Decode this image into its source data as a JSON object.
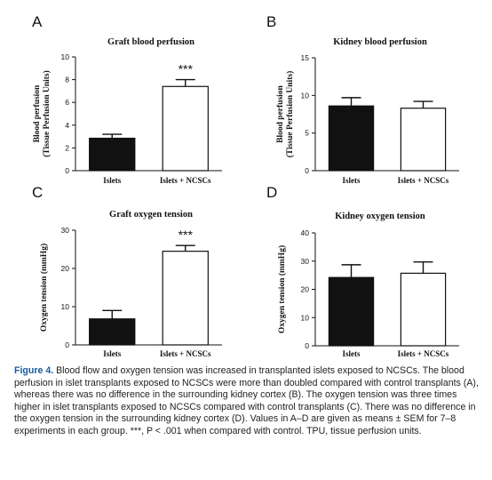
{
  "chart_data": [
    {
      "panel": "A",
      "type": "bar",
      "title": "Graft blood perfusion",
      "ylabel": "Blood perfusion (Tissue Perfusion Units)",
      "ylabel_lines": [
        "Blood perfusion",
        "(Tissue Perfusion Units)"
      ],
      "categories": [
        "Islets",
        "Islets + NCSCs"
      ],
      "values": [
        2.85,
        7.4
      ],
      "errors": [
        0.35,
        0.6
      ],
      "bar_colors": [
        "#111111",
        "#ffffff"
      ],
      "significance": [
        "",
        "***"
      ],
      "ylim": [
        0,
        10
      ],
      "yticks": [
        0,
        2,
        4,
        6,
        8,
        10
      ]
    },
    {
      "panel": "B",
      "type": "bar",
      "title": "Kidney blood perfusion",
      "ylabel": "Blood perfusion (Tissue Perfusion Units)",
      "ylabel_lines": [
        "Blood perfusion",
        "(Tissue Perfusion Units)"
      ],
      "categories": [
        "Islets",
        "Islets + NCSCs"
      ],
      "values": [
        8.6,
        8.3
      ],
      "errors": [
        1.1,
        0.9
      ],
      "bar_colors": [
        "#111111",
        "#ffffff"
      ],
      "significance": [
        "",
        ""
      ],
      "ylim": [
        0,
        15
      ],
      "yticks": [
        0,
        5,
        10,
        15
      ]
    },
    {
      "panel": "C",
      "type": "bar",
      "title": "Graft oxygen tension",
      "ylabel": "Oxygen tension (mmHg)",
      "ylabel_lines": [
        "Oxygen tension (mmHg)"
      ],
      "categories": [
        "Islets",
        "Islets + NCSCs"
      ],
      "values": [
        6.8,
        24.5
      ],
      "errors": [
        2.2,
        1.5
      ],
      "bar_colors": [
        "#111111",
        "#ffffff"
      ],
      "significance": [
        "",
        "***"
      ],
      "ylim": [
        0,
        30
      ],
      "yticks": [
        0,
        10,
        20,
        30
      ]
    },
    {
      "panel": "D",
      "type": "bar",
      "title": "Kidney oxygen tension",
      "ylabel": "Oxygen tension (mmHg)",
      "ylabel_lines": [
        "Oxygen tension (mmHg)"
      ],
      "categories": [
        "Islets",
        "Islets + NCSCs"
      ],
      "values": [
        24.2,
        25.7
      ],
      "errors": [
        4.5,
        4.0
      ],
      "bar_colors": [
        "#111111",
        "#ffffff"
      ],
      "significance": [
        "",
        ""
      ],
      "ylim": [
        0,
        40
      ],
      "yticks": [
        0,
        10,
        20,
        30,
        40
      ]
    }
  ],
  "caption": {
    "label": "Figure 4.",
    "text": "Blood flow and oxygen tension was increased in transplanted islets exposed to NCSCs. The blood perfusion in islet transplants exposed to NCSCs were more than doubled compared with control transplants (A), whereas there was no difference in the surrounding kidney cortex (B). The oxygen tension was three times higher in islet transplants exposed to NCSCs compared with control transplants (C). There was no difference in the oxygen tension in the surrounding kidney cortex (D). Values in A–D are given as means ± SEM for 7–8 experiments in each group. ***, P < .001 when compared with control. TPU, tissue perfusion units."
  }
}
